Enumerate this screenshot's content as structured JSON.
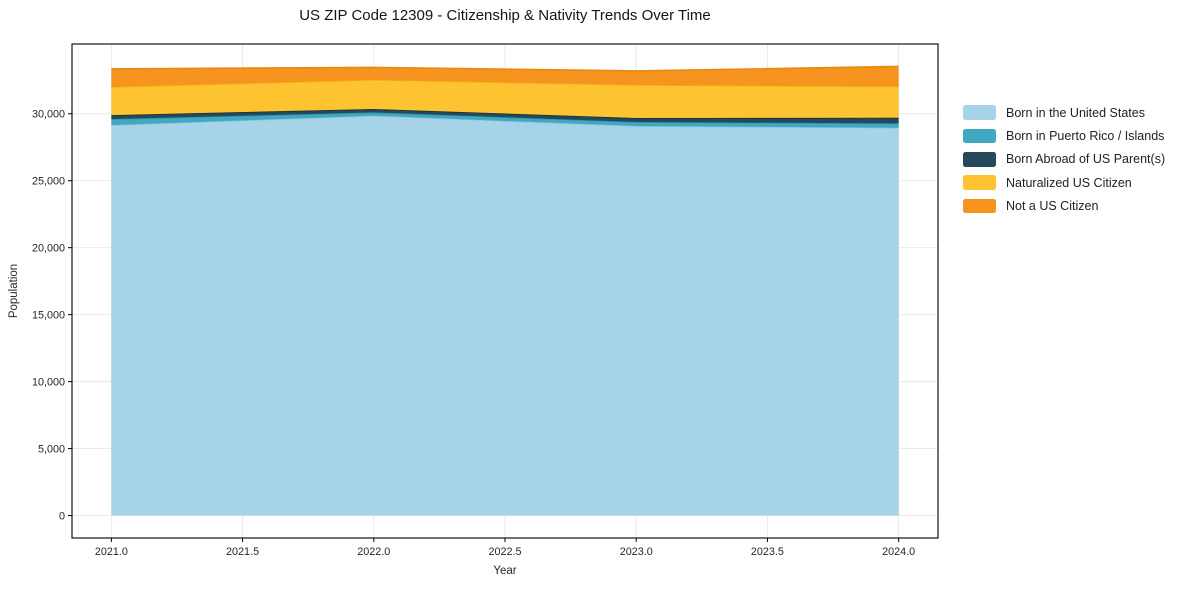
{
  "figure": {
    "title": "US ZIP Code 12309 - Citizenship & Nativity Trends Over Time",
    "xlabel": "Year",
    "ylabel": "Population"
  },
  "chart_data": {
    "type": "area",
    "stacked": true,
    "title": "US ZIP Code 12309 - Citizenship & Nativity Trends Over Time",
    "xlabel": "Year",
    "ylabel": "Population",
    "x": [
      2021,
      2022,
      2023,
      2024
    ],
    "series": [
      {
        "name": "Born in the United States",
        "color": "#a7d3e8",
        "edge_color": "#8fc7e0",
        "values": [
          29150,
          29850,
          29080,
          28950
        ]
      },
      {
        "name": "Born in Puerto Rico / Islands",
        "color": "#41a8c2",
        "edge_color": "#3295ae",
        "values": [
          450,
          250,
          300,
          330
        ]
      },
      {
        "name": "Born Abroad of US Parent(s)",
        "color": "#25495a",
        "edge_color": "#16323f",
        "values": [
          300,
          250,
          300,
          420
        ]
      },
      {
        "name": "Naturalized US Citizen",
        "color": "#fdc331",
        "edge_color": "#f1b215",
        "values": [
          2100,
          2180,
          2470,
          2330
        ]
      },
      {
        "name": "Not a US Citizen",
        "color": "#f6941f",
        "edge_color": "#e8880f",
        "values": [
          1350,
          930,
          1050,
          1500
        ]
      }
    ],
    "totals": [
      33350,
      33460,
      33200,
      33530
    ],
    "xlim": [
      2020.85,
      2024.15
    ],
    "ylim": [
      -1676,
      35207
    ],
    "x_ticks": [
      2021.0,
      2021.5,
      2022.0,
      2022.5,
      2023.0,
      2023.5,
      2024.0
    ],
    "x_tick_labels": [
      "2021.0",
      "2021.5",
      "2022.0",
      "2022.5",
      "2023.0",
      "2023.5",
      "2024.0"
    ],
    "y_ticks": [
      0,
      5000,
      10000,
      15000,
      20000,
      25000,
      30000
    ],
    "y_tick_labels": [
      "0",
      "5,000",
      "10,000",
      "15,000",
      "20,000",
      "25,000",
      "30,000"
    ],
    "grid": true,
    "grid_color": "#e7e7e7",
    "frame_color": "#000000",
    "tick_label_color": "#262626",
    "background": "#ffffff",
    "legend_position": "right"
  }
}
